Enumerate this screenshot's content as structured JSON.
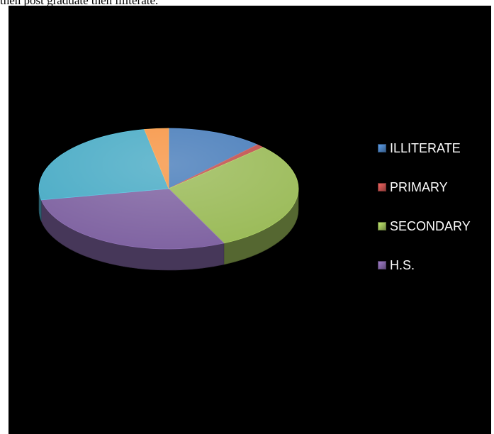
{
  "page": {
    "caption": "then post graduate then illiterate."
  },
  "chart_data": {
    "type": "pie",
    "style": "3d",
    "title": "",
    "background": "#000000",
    "legend_position": "right",
    "categories": [
      "ILLITERATE",
      "PRIMARY",
      "SECONDARY",
      "H.S.",
      "",
      ""
    ],
    "values": [
      12,
      1,
      30,
      29,
      25,
      3
    ],
    "colors": [
      "#4a7ebb",
      "#c0504d",
      "#9bbb59",
      "#8064a2",
      "#4bacc6",
      "#f79646"
    ],
    "legend": [
      "ILLITERATE",
      "PRIMARY",
      "SECONDARY",
      "H.S."
    ],
    "legend_colors": [
      "#4a7ebb",
      "#c0504d",
      "#9bbb59",
      "#8064a2"
    ]
  }
}
